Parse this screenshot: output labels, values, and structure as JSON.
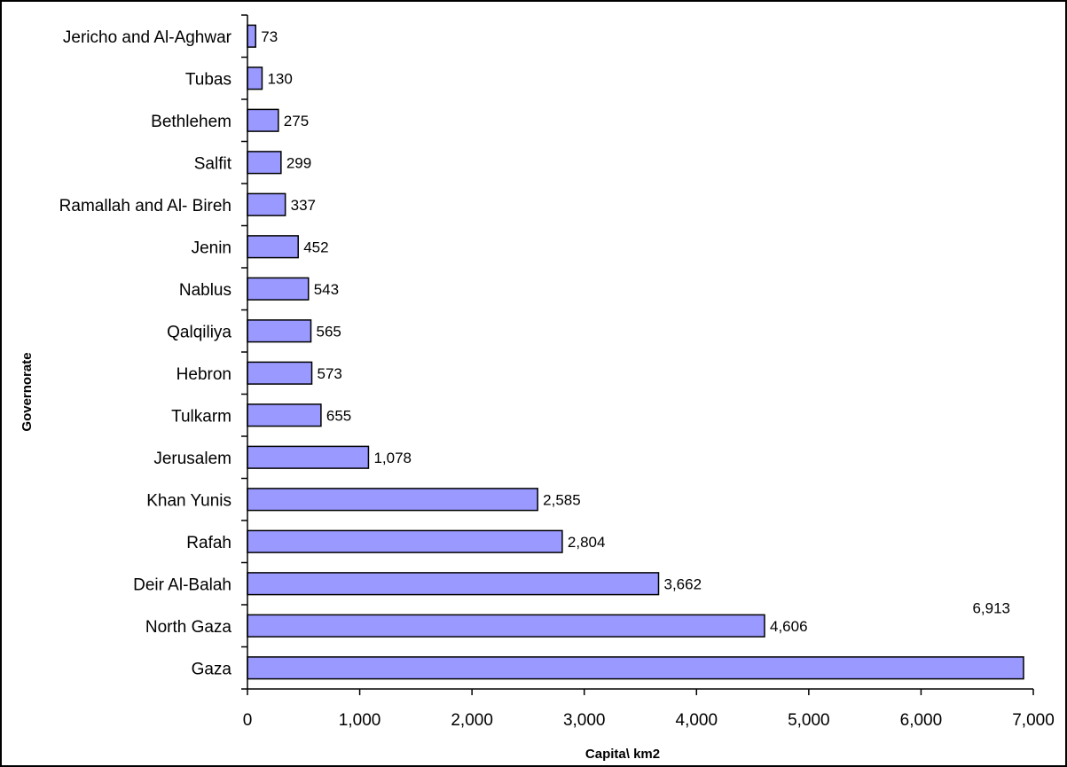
{
  "chart_data": {
    "type": "bar",
    "orientation": "horizontal",
    "categories": [
      "Jericho and Al-Aghwar",
      "Tubas",
      "Bethlehem",
      "Salfit",
      "Ramallah and Al- Bireh",
      "Jenin",
      "Nablus",
      "Qalqiliya",
      "Hebron",
      "Tulkarm",
      "Jerusalem",
      "Khan Yunis",
      "Rafah",
      "Deir Al-Balah",
      "North Gaza",
      "Gaza"
    ],
    "values": [
      73,
      130,
      275,
      299,
      337,
      452,
      543,
      565,
      573,
      655,
      1078,
      2585,
      2804,
      3662,
      4606,
      6913
    ],
    "value_labels": [
      "73",
      "130",
      "275",
      "299",
      "337",
      "452",
      "543",
      "565",
      "573",
      "655",
      "1,078",
      "2,585",
      "2,804",
      "3,662",
      "4,606",
      "6,913"
    ],
    "xlabel": "Capita\\ km2",
    "ylabel": "Governorate",
    "xlim": [
      0,
      7000
    ],
    "xticks": [
      0,
      1000,
      2000,
      3000,
      4000,
      5000,
      6000,
      7000
    ],
    "xtick_labels": [
      "0",
      "1,000",
      "2,000",
      "3,000",
      "4,000",
      "5,000",
      "6,000",
      "7,000"
    ],
    "grid": false,
    "legend": "none",
    "colors": {
      "bar_fill": "#9999ff",
      "bar_stroke": "#000000",
      "axis": "#000000"
    }
  }
}
